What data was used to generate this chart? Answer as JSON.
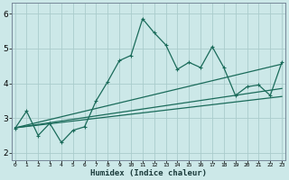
{
  "xlabel": "Humidex (Indice chaleur)",
  "background_color": "#cce8e8",
  "grid_color": "#aacccc",
  "line_color": "#1a6b5a",
  "xlim": [
    0,
    23
  ],
  "ylim": [
    1.8,
    6.3
  ],
  "xticks": [
    0,
    1,
    2,
    3,
    4,
    5,
    6,
    7,
    8,
    9,
    10,
    11,
    12,
    13,
    14,
    15,
    16,
    17,
    18,
    19,
    20,
    21,
    22,
    23
  ],
  "yticks": [
    2,
    3,
    4,
    5,
    6
  ],
  "series1_x": [
    0,
    1,
    2,
    3,
    4,
    5,
    6,
    7,
    8,
    9,
    10,
    11,
    12,
    13,
    14,
    15,
    16,
    17,
    18,
    19,
    20,
    21,
    22,
    23
  ],
  "series1_y": [
    2.7,
    3.2,
    2.5,
    2.85,
    2.3,
    2.65,
    2.75,
    3.5,
    4.05,
    4.65,
    4.8,
    5.85,
    5.45,
    5.1,
    4.4,
    4.6,
    4.45,
    5.05,
    4.45,
    3.65,
    3.9,
    3.95,
    3.65,
    4.6
  ],
  "series2_x": [
    0,
    23
  ],
  "series2_y": [
    2.72,
    4.55
  ],
  "series3_x": [
    0,
    23
  ],
  "series3_y": [
    2.72,
    3.85
  ],
  "series4_x": [
    0,
    23
  ],
  "series4_y": [
    2.72,
    3.62
  ]
}
